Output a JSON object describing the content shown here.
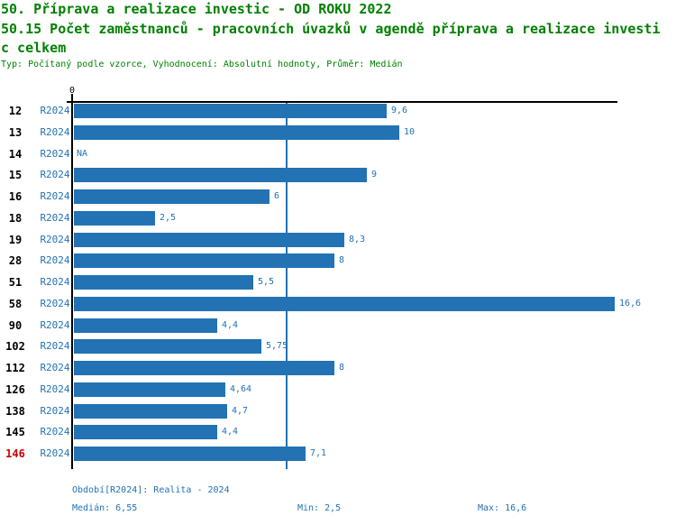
{
  "header": {
    "title_line1": "50. Příprava a realizace investic - OD ROKU 2022",
    "title_line2": "50.15 Počet zaměstnanců - pracovních úvazků v agendě příprava a realizace investi",
    "title_line3": "c celkem",
    "meta_line": "Typ: Počítaný podle vzorce, Vyhodnocení: Absolutní hodnoty, Průměr: Medián"
  },
  "chart_data": {
    "type": "bar",
    "orientation": "horizontal",
    "axis_zero_label": "0",
    "series_name": "R2024",
    "categories": [
      "12",
      "13",
      "14",
      "15",
      "16",
      "18",
      "19",
      "28",
      "51",
      "58",
      "90",
      "102",
      "112",
      "126",
      "138",
      "145",
      "146"
    ],
    "values": [
      9.6,
      10,
      null,
      9,
      6,
      2.5,
      8.3,
      8,
      5.5,
      16.6,
      4.4,
      5.75,
      8,
      4.64,
      4.7,
      4.4,
      7.1
    ],
    "value_labels": [
      "9,6",
      "10",
      "NA",
      "9",
      "6",
      "2,5",
      "8,3",
      "8",
      "5,5",
      "16,6",
      "4,4",
      "5,75",
      "8",
      "4,64",
      "4,7",
      "4,4",
      "7,1"
    ],
    "highlighted_category": "146",
    "median_reference_value": 6.55,
    "xlim": [
      0,
      16.6
    ],
    "grid": false,
    "bar_color": "#2272b4",
    "highlight_color": "#cc0000",
    "title_color": "#008000"
  },
  "footer": {
    "period": "Období[R2024]: Realita - 2024",
    "median": "Medián: 6,55",
    "min": "Min: 2,5",
    "max": "Max: 16,6"
  }
}
